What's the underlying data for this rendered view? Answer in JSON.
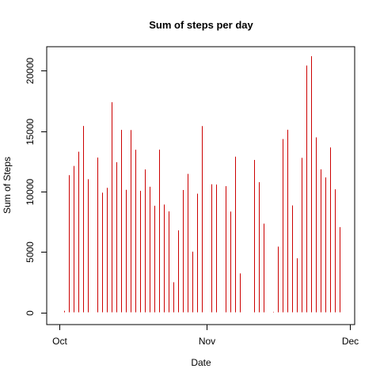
{
  "chart_data": {
    "type": "bar",
    "title": "Sum of steps per day",
    "xlabel": "Date",
    "ylabel": "Sum of Steps",
    "xlim": [
      "2012-10-01",
      "2012-12-01"
    ],
    "ylim": [
      0,
      21194
    ],
    "x_ticks": [
      {
        "date": "2012-10-01",
        "label": "Oct"
      },
      {
        "date": "2012-11-01",
        "label": "Nov"
      },
      {
        "date": "2012-12-01",
        "label": "Dec"
      }
    ],
    "y_ticks": [
      0,
      5000,
      10000,
      15000,
      20000
    ],
    "grid": false,
    "bar_color": "#cc0000",
    "series": [
      {
        "dates": [
          "2012-10-02",
          "2012-10-03",
          "2012-10-04",
          "2012-10-05",
          "2012-10-06",
          "2012-10-07",
          "2012-10-09",
          "2012-10-10",
          "2012-10-11",
          "2012-10-12",
          "2012-10-13",
          "2012-10-14",
          "2012-10-15",
          "2012-10-16",
          "2012-10-17",
          "2012-10-18",
          "2012-10-19",
          "2012-10-20",
          "2012-10-21",
          "2012-10-22",
          "2012-10-23",
          "2012-10-24",
          "2012-10-25",
          "2012-10-26",
          "2012-10-27",
          "2012-10-28",
          "2012-10-29",
          "2012-10-30",
          "2012-10-31",
          "2012-11-02",
          "2012-11-03",
          "2012-11-05",
          "2012-11-06",
          "2012-11-07",
          "2012-11-08",
          "2012-11-11",
          "2012-11-12",
          "2012-11-13",
          "2012-11-15",
          "2012-11-16",
          "2012-11-17",
          "2012-11-18",
          "2012-11-19",
          "2012-11-20",
          "2012-11-21",
          "2012-11-22",
          "2012-11-23",
          "2012-11-24",
          "2012-11-25",
          "2012-11-26",
          "2012-11-27",
          "2012-11-28",
          "2012-11-29"
        ],
        "values": [
          126,
          11352,
          12116,
          13294,
          15420,
          11015,
          12811,
          9900,
          10304,
          17382,
          12426,
          15098,
          10139,
          15084,
          13452,
          10056,
          11829,
          10395,
          8821,
          13460,
          8918,
          8355,
          2492,
          6778,
          10119,
          11458,
          5018,
          9819,
          15414,
          10600,
          10571,
          10439,
          8334,
          12883,
          3219,
          12608,
          10765,
          7336,
          41,
          5441,
          14339,
          15110,
          8841,
          4472,
          12787,
          20427,
          21194,
          14478,
          11834,
          11162,
          13646,
          10183,
          7047
        ]
      }
    ]
  }
}
